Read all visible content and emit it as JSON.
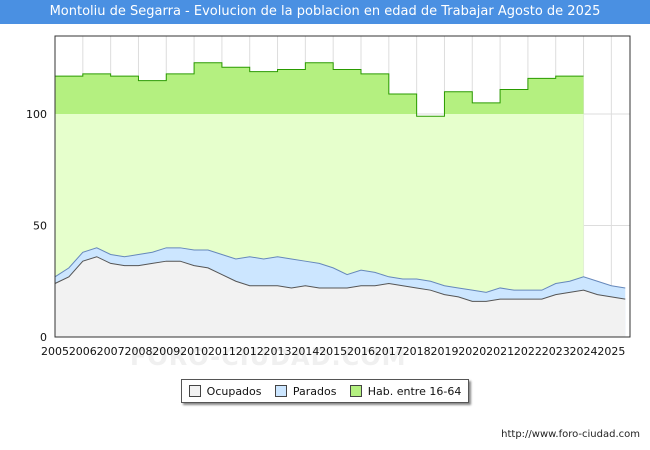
{
  "header": {
    "title": "Montoliu de Segarra - Evolucion de la poblacion en edad de Trabajar Agosto de 2025"
  },
  "footer": {
    "source": "http://www.foro-ciudad.com"
  },
  "watermark": "FORO-CIUDAD.COM",
  "colors": {
    "hab": "#b4f080",
    "hab_fill": "#e6ffcc",
    "hab_line": "#2a9a00",
    "parados": "#cce6ff",
    "parados_line": "#6688bb",
    "ocupados": "#f2f2f2",
    "ocupados_line": "#555555"
  },
  "chart_data": {
    "type": "area",
    "title": "Montoliu de Segarra - Evolucion de la poblacion en edad de Trabajar Agosto de 2025",
    "xlabel": "",
    "ylabel": "",
    "xlim": [
      2005,
      2025.67
    ],
    "ylim": [
      0,
      135
    ],
    "y_ticks": [
      0,
      50,
      100
    ],
    "x_ticks": [
      "2005",
      "2006",
      "2007",
      "2008",
      "2009",
      "2010",
      "2011",
      "2012",
      "2013",
      "2014",
      "2015",
      "2016",
      "2017",
      "2018",
      "2019",
      "2020",
      "2021",
      "2022",
      "2023",
      "2024",
      "2025"
    ],
    "grid": true,
    "legend_position": "bottom",
    "legend": [
      "Ocupados",
      "Parados",
      "Hab. entre 16-64"
    ],
    "series": [
      {
        "name": "Hab. entre 16-64",
        "type": "step",
        "x": [
          2005,
          2006,
          2007,
          2008,
          2009,
          2010,
          2011,
          2012,
          2013,
          2014,
          2015,
          2016,
          2017,
          2018,
          2019,
          2020,
          2021,
          2022,
          2023,
          2024
        ],
        "values": [
          117,
          118,
          117,
          115,
          118,
          123,
          121,
          119,
          120,
          123,
          120,
          118,
          109,
          99,
          110,
          105,
          111,
          116,
          117,
          null
        ]
      },
      {
        "name": "Parados",
        "type": "line",
        "x": [
          2005,
          2005.5,
          2006,
          2006.5,
          2007,
          2007.5,
          2008,
          2008.5,
          2009,
          2009.5,
          2010,
          2010.5,
          2011,
          2011.5,
          2012,
          2012.5,
          2013,
          2013.5,
          2014,
          2014.5,
          2015,
          2015.5,
          2016,
          2016.5,
          2017,
          2017.5,
          2018,
          2018.5,
          2019,
          2019.5,
          2020,
          2020.5,
          2021,
          2021.5,
          2022,
          2022.5,
          2023,
          2023.5,
          2024,
          2024.5,
          2025,
          2025.5
        ],
        "values": [
          27,
          31,
          38,
          40,
          37,
          36,
          37,
          38,
          40,
          40,
          39,
          39,
          37,
          35,
          36,
          35,
          36,
          35,
          34,
          33,
          31,
          28,
          30,
          29,
          27,
          26,
          26,
          25,
          23,
          22,
          21,
          20,
          22,
          21,
          21,
          21,
          24,
          25,
          27,
          25,
          23,
          22
        ]
      },
      {
        "name": "Ocupados",
        "type": "line",
        "x": [
          2005,
          2005.5,
          2006,
          2006.5,
          2007,
          2007.5,
          2008,
          2008.5,
          2009,
          2009.5,
          2010,
          2010.5,
          2011,
          2011.5,
          2012,
          2012.5,
          2013,
          2013.5,
          2014,
          2014.5,
          2015,
          2015.5,
          2016,
          2016.5,
          2017,
          2017.5,
          2018,
          2018.5,
          2019,
          2019.5,
          2020,
          2020.5,
          2021,
          2021.5,
          2022,
          2022.5,
          2023,
          2023.5,
          2024,
          2024.5,
          2025,
          2025.5
        ],
        "values": [
          24,
          27,
          34,
          36,
          33,
          32,
          32,
          33,
          34,
          34,
          32,
          31,
          28,
          25,
          23,
          23,
          23,
          22,
          23,
          22,
          22,
          22,
          23,
          23,
          24,
          23,
          22,
          21,
          19,
          18,
          16,
          16,
          17,
          17,
          17,
          17,
          19,
          20,
          21,
          19,
          18,
          17
        ]
      }
    ]
  }
}
